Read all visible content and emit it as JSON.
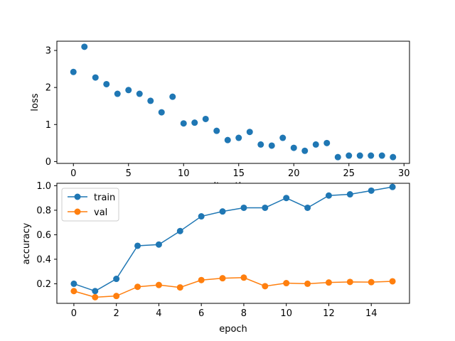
{
  "chart_data": [
    {
      "type": "scatter",
      "xlabel": "iteration",
      "ylabel": "loss",
      "xlim": [
        -1.5,
        30.5
      ],
      "ylim": [
        -0.05,
        3.25
      ],
      "xticks": [
        0,
        5,
        10,
        15,
        20,
        25,
        30
      ],
      "yticks": [
        0,
        1,
        2,
        3
      ],
      "color": "#1f77b4",
      "x": [
        0,
        1,
        2,
        3,
        4,
        5,
        6,
        7,
        8,
        9,
        10,
        11,
        12,
        13,
        14,
        15,
        16,
        17,
        18,
        19,
        20,
        21,
        22,
        23,
        24,
        25,
        26,
        27,
        28,
        29
      ],
      "y": [
        2.42,
        3.1,
        2.27,
        2.09,
        1.83,
        1.93,
        1.83,
        1.64,
        1.33,
        1.75,
        1.03,
        1.05,
        1.15,
        0.83,
        0.58,
        0.64,
        0.8,
        0.46,
        0.43,
        0.64,
        0.37,
        0.29,
        0.46,
        0.5,
        0.12,
        0.16,
        0.16,
        0.16,
        0.16,
        0.12
      ]
    },
    {
      "type": "line",
      "xlabel": "epoch",
      "ylabel": "accuracy",
      "xlim": [
        -0.8,
        15.8
      ],
      "ylim": [
        0.04,
        1.02
      ],
      "xticks": [
        0,
        2,
        4,
        6,
        8,
        10,
        12,
        14
      ],
      "yticks": [
        0.2,
        0.4,
        0.6,
        0.8,
        1.0
      ],
      "ytick_labels": [
        "0.2",
        "0.4",
        "0.6",
        "0.8",
        "1.0"
      ],
      "legend": "top-left",
      "x": [
        0,
        1,
        2,
        3,
        4,
        5,
        6,
        7,
        8,
        9,
        10,
        11,
        12,
        13,
        14,
        15
      ],
      "series": [
        {
          "name": "train",
          "color": "#1f77b4",
          "values": [
            0.2,
            0.14,
            0.24,
            0.51,
            0.52,
            0.63,
            0.75,
            0.79,
            0.82,
            0.82,
            0.9,
            0.82,
            0.92,
            0.93,
            0.96,
            0.99
          ]
        },
        {
          "name": "val",
          "color": "#ff7f0e",
          "values": [
            0.14,
            0.09,
            0.1,
            0.175,
            0.19,
            0.17,
            0.23,
            0.245,
            0.25,
            0.18,
            0.205,
            0.2,
            0.21,
            0.215,
            0.213,
            0.22
          ]
        }
      ]
    }
  ]
}
